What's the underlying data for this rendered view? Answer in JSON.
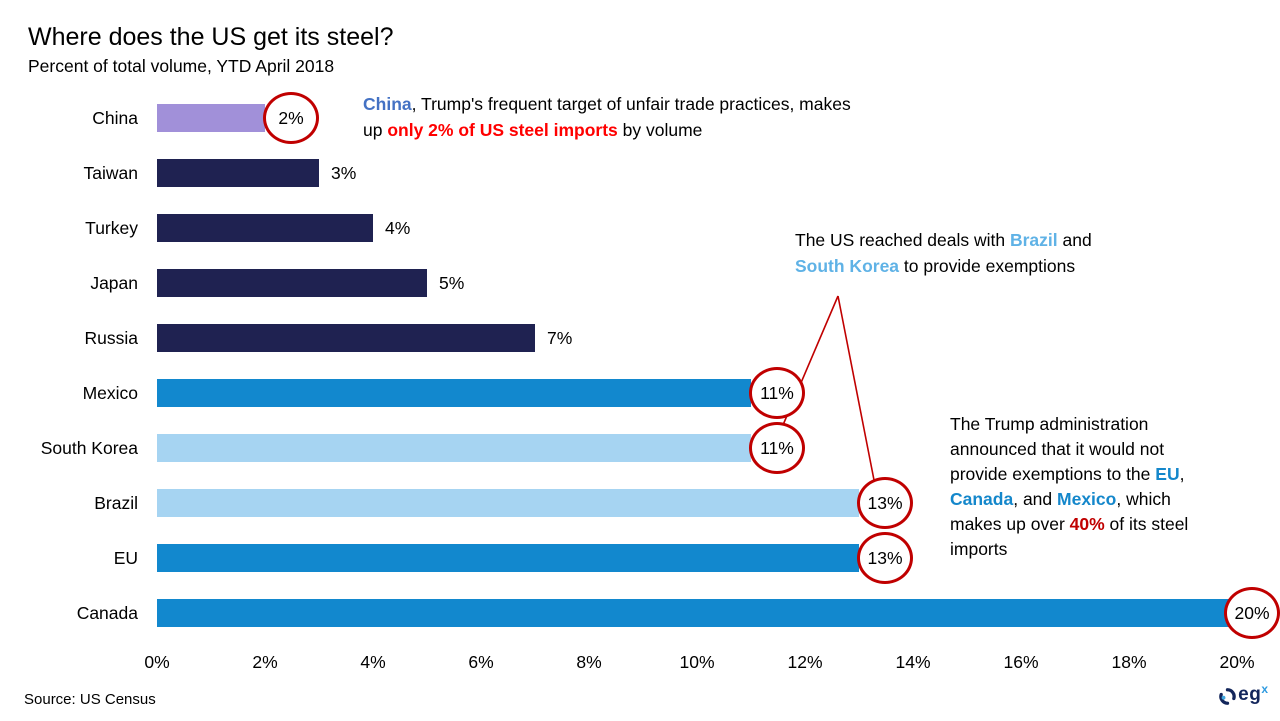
{
  "page": {
    "title": "Where does the US get its steel?",
    "subtitle": "Percent of total volume, YTD April 2018",
    "source": "Source: US Census"
  },
  "logo": {
    "text": "eg",
    "superscript": "x",
    "icon": "circular-arrows-icon"
  },
  "colors": {
    "bar_purple": "#A190D9",
    "bar_navy": "#1F2251",
    "bar_blue": "#1288CE",
    "bar_light_blue": "#A6D4F2",
    "circle_stroke_red": "#C00000",
    "connector_red": "#C00000",
    "text_bright_red": "#FF0000",
    "text_dark_red": "#C00000",
    "text_blue": "#1487CB",
    "text_light_blue": "#5FB2E6",
    "text_purple_blue": "#4472C4",
    "logo_navy": "#13265B",
    "logo_blue": "#2F9BE0"
  },
  "chart_data": {
    "type": "bar",
    "orientation": "horizontal",
    "title": "Where does the US get its steel?",
    "subtitle": "Percent of total volume, YTD April 2018",
    "xlabel": "",
    "ylabel": "",
    "xlim": [
      0,
      20
    ],
    "grid": false,
    "legend": false,
    "x_ticks": [
      "0%",
      "2%",
      "4%",
      "6%",
      "8%",
      "10%",
      "12%",
      "14%",
      "16%",
      "18%",
      "20%"
    ],
    "categories": [
      "China",
      "Taiwan",
      "Turkey",
      "Japan",
      "Russia",
      "Mexico",
      "South Korea",
      "Brazil",
      "EU",
      "Canada"
    ],
    "values": [
      2,
      3,
      4,
      5,
      7,
      11,
      11,
      13,
      13,
      20
    ],
    "bars": [
      {
        "label": "China",
        "value": 2,
        "display": "2%",
        "color": "#A190D9",
        "circled": true
      },
      {
        "label": "Taiwan",
        "value": 3,
        "display": "3%",
        "color": "#1F2251",
        "circled": false
      },
      {
        "label": "Turkey",
        "value": 4,
        "display": "4%",
        "color": "#1F2251",
        "circled": false
      },
      {
        "label": "Japan",
        "value": 5,
        "display": "5%",
        "color": "#1F2251",
        "circled": false
      },
      {
        "label": "Russia",
        "value": 7,
        "display": "7%",
        "color": "#1F2251",
        "circled": false
      },
      {
        "label": "Mexico",
        "value": 11,
        "display": "11%",
        "color": "#1288CE",
        "circled": true
      },
      {
        "label": "South Korea",
        "value": 11,
        "display": "11%",
        "color": "#A6D4F2",
        "circled": true
      },
      {
        "label": "Brazil",
        "value": 13,
        "display": "13%",
        "color": "#A6D4F2",
        "circled": true
      },
      {
        "label": "EU",
        "value": 13,
        "display": "13%",
        "color": "#1288CE",
        "circled": true
      },
      {
        "label": "Canada",
        "value": 20,
        "display": "20%",
        "color": "#1288CE",
        "circled": true
      }
    ]
  },
  "annotations": {
    "china": {
      "lines": [
        [
          {
            "text": "China",
            "style": "purple-blue"
          },
          {
            "text": ", Trump's frequent target of unfair trade practices, makes",
            "style": ""
          }
        ],
        [
          {
            "text": "up ",
            "style": ""
          },
          {
            "text": "only 2% of US steel imports",
            "style": "red"
          },
          {
            "text": " by volume",
            "style": ""
          }
        ]
      ]
    },
    "deals": {
      "lines": [
        [
          {
            "text": "The US reached deals with ",
            "style": ""
          },
          {
            "text": "Brazil",
            "style": "light-blue"
          },
          {
            "text": " and",
            "style": ""
          }
        ],
        [
          {
            "text": "South Korea",
            "style": "light-blue"
          },
          {
            "text": " to provide exemptions",
            "style": ""
          }
        ]
      ],
      "connects_to": [
        "South Korea",
        "Brazil"
      ]
    },
    "exemptions": {
      "lines": [
        [
          {
            "text": "The Trump administration",
            "style": ""
          }
        ],
        [
          {
            "text": "announced that it would not",
            "style": ""
          }
        ],
        [
          {
            "text": "provide exemptions to the ",
            "style": ""
          },
          {
            "text": "EU",
            "style": "blue"
          },
          {
            "text": ",",
            "style": ""
          }
        ],
        [
          {
            "text": "Canada",
            "style": "blue"
          },
          {
            "text": ", and ",
            "style": ""
          },
          {
            "text": "Mexico",
            "style": "blue"
          },
          {
            "text": ", which",
            "style": ""
          }
        ],
        [
          {
            "text": "makes up over ",
            "style": ""
          },
          {
            "text": "40%",
            "style": "dark-red"
          },
          {
            "text": " of its steel",
            "style": ""
          }
        ],
        [
          {
            "text": "imports",
            "style": ""
          }
        ]
      ]
    }
  }
}
